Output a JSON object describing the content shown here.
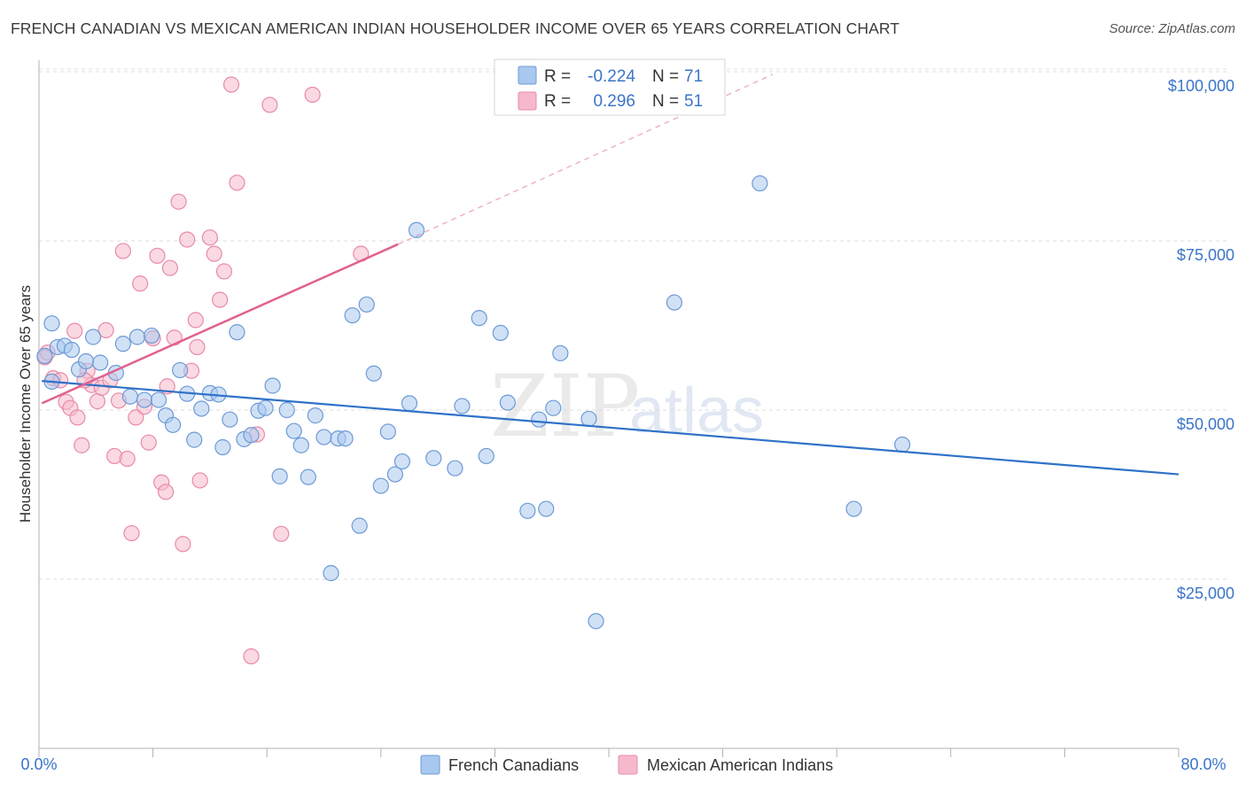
{
  "header": {
    "title": "FRENCH CANADIAN VS MEXICAN AMERICAN INDIAN HOUSEHOLDER INCOME OVER 65 YEARS CORRELATION CHART",
    "source": "Source: ZipAtlas.com"
  },
  "watermark": {
    "zip": "ZIP",
    "atlas": "atlas"
  },
  "legend": {
    "rows": [
      {
        "r_label": "R =",
        "r_value": "-0.224",
        "n_label": "N =",
        "n_value": "71"
      },
      {
        "r_label": "R =",
        "r_value": "0.296",
        "n_label": "N =",
        "n_value": "51"
      }
    ]
  },
  "colors": {
    "blue_fill": "#a9c8ef",
    "blue_stroke": "#6d9ad6",
    "blue_line": "#2f72c8",
    "pink_fill": "#f6b9cb",
    "pink_stroke": "#e98aa8",
    "pink_line": "#e0628f",
    "grid": "#dcdcdc",
    "tick_label": "#3a74c9"
  },
  "chart_data": {
    "type": "scatter",
    "title": "FRENCH CANADIAN VS MEXICAN AMERICAN INDIAN HOUSEHOLDER INCOME OVER 65 YEARS CORRELATION CHART",
    "xlabel": "",
    "ylabel": "Householder Income Over 65 years",
    "xlim": [
      0,
      80
    ],
    "ylim": [
      0,
      100000
    ],
    "x_tick_labels": [
      "0.0%",
      "80.0%"
    ],
    "y_ticks": [
      {
        "value": 25000,
        "label": "$25,000"
      },
      {
        "value": 50000,
        "label": "$50,000"
      },
      {
        "value": 75000,
        "label": "$75,000"
      },
      {
        "value": 100000,
        "label": "$100,000"
      }
    ],
    "series": [
      {
        "name": "French Canadians",
        "color": "blue",
        "trend": {
          "x0": 0.2,
          "y0": 54300,
          "x1": 80,
          "y1": 40500,
          "dashed_extension": false
        },
        "points": [
          [
            0.4,
            58000
          ],
          [
            0.9,
            62800
          ],
          [
            1.3,
            59300
          ],
          [
            1.8,
            59500
          ],
          [
            2.3,
            58900
          ],
          [
            2.8,
            56000
          ],
          [
            3.3,
            57200
          ],
          [
            3.8,
            60800
          ],
          [
            4.3,
            57000
          ],
          [
            5.4,
            55500
          ],
          [
            5.9,
            59800
          ],
          [
            6.4,
            52000
          ],
          [
            6.9,
            60800
          ],
          [
            7.4,
            51500
          ],
          [
            7.9,
            61000
          ],
          [
            8.4,
            51500
          ],
          [
            8.9,
            49200
          ],
          [
            9.4,
            47800
          ],
          [
            9.9,
            55900
          ],
          [
            10.4,
            52400
          ],
          [
            10.9,
            45600
          ],
          [
            11.4,
            50200
          ],
          [
            12.0,
            52500
          ],
          [
            12.6,
            52300
          ],
          [
            12.9,
            44500
          ],
          [
            13.4,
            48600
          ],
          [
            13.9,
            61500
          ],
          [
            14.4,
            45700
          ],
          [
            14.9,
            46300
          ],
          [
            15.4,
            49900
          ],
          [
            15.9,
            50300
          ],
          [
            16.4,
            53600
          ],
          [
            16.9,
            40200
          ],
          [
            17.4,
            50000
          ],
          [
            17.9,
            46900
          ],
          [
            18.4,
            44800
          ],
          [
            18.9,
            40100
          ],
          [
            19.4,
            49200
          ],
          [
            20.0,
            46000
          ],
          [
            20.5,
            25900
          ],
          [
            21.0,
            45800
          ],
          [
            21.5,
            45800
          ],
          [
            22.0,
            64000
          ],
          [
            22.5,
            32900
          ],
          [
            23.0,
            65600
          ],
          [
            23.5,
            55400
          ],
          [
            24.0,
            38800
          ],
          [
            24.5,
            46800
          ],
          [
            25.0,
            40500
          ],
          [
            25.5,
            42400
          ],
          [
            26.0,
            51000
          ],
          [
            26.5,
            76600
          ],
          [
            27.7,
            42900
          ],
          [
            29.2,
            41400
          ],
          [
            29.7,
            50600
          ],
          [
            30.9,
            63600
          ],
          [
            31.4,
            43200
          ],
          [
            32.4,
            61400
          ],
          [
            32.9,
            51100
          ],
          [
            34.3,
            35100
          ],
          [
            35.1,
            48600
          ],
          [
            35.6,
            35400
          ],
          [
            36.1,
            50300
          ],
          [
            36.6,
            58400
          ],
          [
            38.6,
            48700
          ],
          [
            39.1,
            18800
          ],
          [
            44.6,
            65900
          ],
          [
            50.6,
            83500
          ],
          [
            57.2,
            35400
          ],
          [
            60.6,
            44900
          ],
          [
            0.9,
            54200
          ]
        ]
      },
      {
        "name": "Mexican American Indians",
        "color": "pink",
        "trend": {
          "x0": 0.2,
          "y0": 51000,
          "x1": 25.2,
          "y1": 74500,
          "dashed_extension": true,
          "dash_x1": 51.5,
          "dash_y1": 99600
        },
        "points": [
          [
            0.4,
            57800
          ],
          [
            0.6,
            58500
          ],
          [
            1.0,
            54700
          ],
          [
            1.5,
            54400
          ],
          [
            1.9,
            51200
          ],
          [
            2.2,
            50300
          ],
          [
            2.5,
            61700
          ],
          [
            2.7,
            48900
          ],
          [
            3.0,
            44800
          ],
          [
            3.4,
            55800
          ],
          [
            3.7,
            53700
          ],
          [
            4.1,
            51300
          ],
          [
            4.4,
            53300
          ],
          [
            4.7,
            61800
          ],
          [
            5.0,
            54400
          ],
          [
            5.3,
            43200
          ],
          [
            5.6,
            51400
          ],
          [
            5.9,
            73500
          ],
          [
            6.2,
            42800
          ],
          [
            6.5,
            31800
          ],
          [
            6.8,
            48900
          ],
          [
            7.1,
            68700
          ],
          [
            7.4,
            50500
          ],
          [
            7.7,
            45200
          ],
          [
            8.0,
            60600
          ],
          [
            8.3,
            72800
          ],
          [
            8.6,
            39300
          ],
          [
            8.9,
            37900
          ],
          [
            9.2,
            71000
          ],
          [
            9.5,
            60700
          ],
          [
            9.8,
            80800
          ],
          [
            10.1,
            30200
          ],
          [
            10.4,
            75200
          ],
          [
            10.7,
            55800
          ],
          [
            11.0,
            63300
          ],
          [
            11.3,
            39600
          ],
          [
            12.0,
            75500
          ],
          [
            12.3,
            73100
          ],
          [
            12.7,
            66300
          ],
          [
            13.0,
            70500
          ],
          [
            13.5,
            98100
          ],
          [
            13.9,
            83600
          ],
          [
            14.9,
            13600
          ],
          [
            15.3,
            46400
          ],
          [
            16.2,
            95100
          ],
          [
            17.0,
            31700
          ],
          [
            19.2,
            96600
          ],
          [
            22.6,
            73100
          ],
          [
            3.2,
            54400
          ],
          [
            9.0,
            53500
          ],
          [
            11.1,
            59300
          ]
        ]
      }
    ]
  },
  "bottom_legend": {
    "items": [
      {
        "label": "French Canadians"
      },
      {
        "label": "Mexican American Indians"
      }
    ]
  }
}
